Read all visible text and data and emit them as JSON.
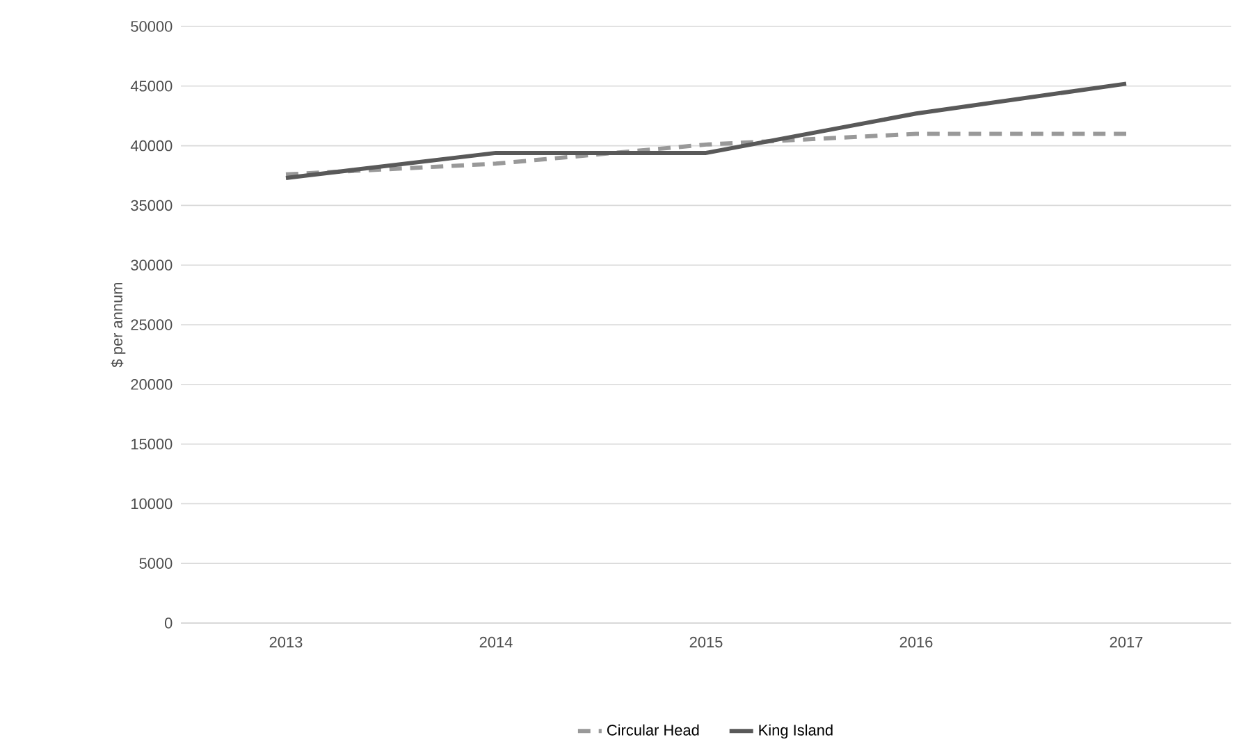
{
  "chart_data": {
    "type": "line",
    "ylabel": "$ per annum",
    "categories": [
      "2013",
      "2014",
      "2015",
      "2016",
      "2017"
    ],
    "series": [
      {
        "name": "Circular Head",
        "color": "#999999",
        "line_style": "dashed",
        "values": [
          37600,
          38500,
          40100,
          41000,
          41000
        ]
      },
      {
        "name": "King Island",
        "color": "#595959",
        "line_style": "solid",
        "values": [
          37300,
          39400,
          39400,
          42700,
          45200
        ]
      }
    ],
    "ylim": [
      0,
      50000
    ],
    "yticks": [
      0,
      5000,
      10000,
      15000,
      20000,
      25000,
      30000,
      35000,
      40000,
      45000,
      50000
    ],
    "grid": "y",
    "legend": "bottom",
    "marker": "none"
  }
}
